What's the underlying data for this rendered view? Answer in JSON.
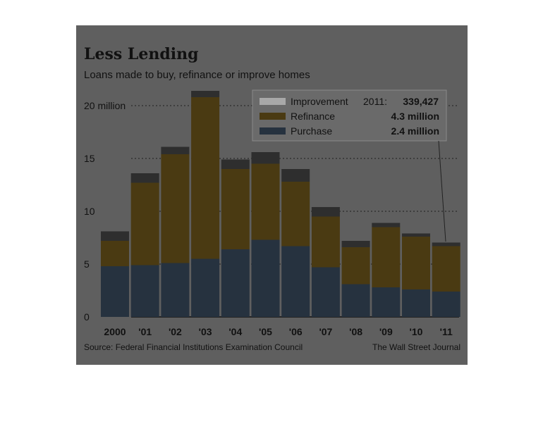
{
  "title": "Less Lending",
  "subtitle": "Loans made to buy, refinance or improve homes",
  "source": "Source: Federal Financial Institutions Examination Council",
  "credit": "The Wall Street Journal",
  "legend": {
    "year_label": "2011:",
    "improvement_value": "339,427",
    "refinance_value": "4.3 million",
    "purchase_value": "2.4 million"
  },
  "colors": {
    "background": "#5f5f5f",
    "purchase": "#26323f",
    "refinance": "#4a3a12",
    "improvement": "#2e2e2e",
    "highlight_refinance": "#f5dc2d",
    "highlight_purchase": "#8fd0f5",
    "highlight_improvement": "#a8a8a8"
  },
  "chart_data": {
    "type": "bar",
    "stacked": true,
    "categories": [
      "2000",
      "'01",
      "'02",
      "'03",
      "'04",
      "'05",
      "'06",
      "'07",
      "'08",
      "'09",
      "'10",
      "'11"
    ],
    "series": [
      {
        "name": "Purchase",
        "values": [
          4.8,
          4.9,
          5.1,
          5.5,
          6.4,
          7.3,
          6.7,
          4.7,
          3.1,
          2.8,
          2.6,
          2.4
        ]
      },
      {
        "name": "Refinance",
        "values": [
          2.4,
          7.8,
          10.3,
          15.3,
          7.6,
          7.2,
          6.1,
          4.8,
          3.5,
          5.7,
          5.0,
          4.3
        ]
      },
      {
        "name": "Improvement",
        "values": [
          0.9,
          0.9,
          0.7,
          0.6,
          0.9,
          1.1,
          1.2,
          0.9,
          0.6,
          0.4,
          0.3,
          0.34
        ]
      }
    ],
    "yticks": [
      "0",
      "5",
      "10",
      "15",
      "20 million"
    ],
    "ylim": [
      0,
      21
    ],
    "grid": true,
    "legend_position": "top-right"
  }
}
